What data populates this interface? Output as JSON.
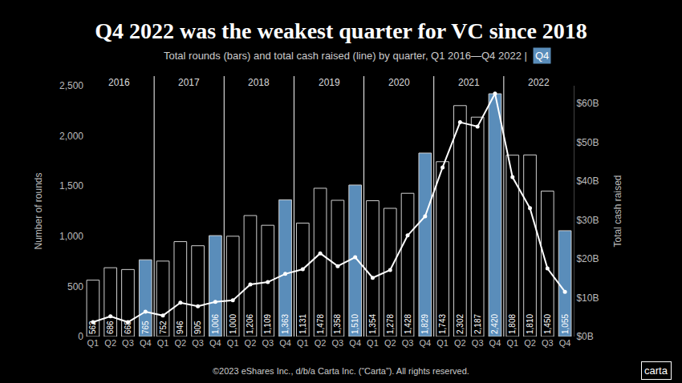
{
  "chart_data": {
    "type": "bar",
    "title": "Q4 2022 was the weakest quarter for VC since 2018",
    "subtitle": "Total rounds (bars) and total cash raised (line) by quarter, Q1 2016—Q4 2022 |",
    "highlight_label": "Q4",
    "ylabel": "Number of rounds",
    "y2label": "Total cash raised",
    "footer": "©2023 eShares Inc., d/b/a Carta Inc. (“Carta”). All rights reserved.",
    "logo": "carta",
    "groups": [
      "2016",
      "2017",
      "2018",
      "2019",
      "2020",
      "2021",
      "2022"
    ],
    "categories": [
      "Q1",
      "Q2",
      "Q3",
      "Q4",
      "Q1",
      "Q2",
      "Q3",
      "Q4",
      "Q1",
      "Q2",
      "Q3",
      "Q4",
      "Q1",
      "Q2",
      "Q3",
      "Q4",
      "Q1",
      "Q2",
      "Q3",
      "Q4",
      "Q1",
      "Q2",
      "Q3",
      "Q4",
      "Q1",
      "Q2",
      "Q3",
      "Q4"
    ],
    "ylim": [
      0,
      2500
    ],
    "yticks": [
      0,
      500,
      {
        "value": 1000,
        "label": "1,000"
      },
      {
        "value": 1500,
        "label": "1,500"
      },
      {
        "value": 2000,
        "label": "2,000"
      },
      {
        "value": 2500,
        "label": "2,500"
      }
    ],
    "y2lim": [
      0,
      64.5
    ],
    "y2ticks": [
      {
        "value": 0,
        "label": "$0B"
      },
      {
        "value": 10,
        "label": "$10B"
      },
      {
        "value": 20,
        "label": "$20B"
      },
      {
        "value": 30,
        "label": "$30B"
      },
      {
        "value": 40,
        "label": "$40B"
      },
      {
        "value": 50,
        "label": "$50B"
      },
      {
        "value": 60,
        "label": "$60B"
      }
    ],
    "grid": false,
    "series": [
      {
        "type": "bar",
        "data_labels": true,
        "values": [
          562,
          686,
          668,
          765,
          752,
          946,
          905,
          1006,
          1000,
          1206,
          1109,
          1363,
          1131,
          1478,
          1358,
          1510,
          1354,
          1278,
          1428,
          1829,
          1743,
          2302,
          2187,
          2420,
          1808,
          1810,
          1450,
          1055
        ],
        "value_labels": [
          "562",
          "686",
          "668",
          "765",
          "752",
          "946",
          "905",
          "1,006",
          "1,000",
          "1,206",
          "1,109",
          "1,363",
          "1,131",
          "1,478",
          "1,358",
          "1,510",
          "1,354",
          "1,278",
          "1,428",
          "1,829",
          "1,743",
          "2,302",
          "2,187",
          "2,420",
          "1,808",
          "1,810",
          "1,450",
          "1,055"
        ],
        "colors": [
          "#000000",
          "#000000",
          "#000000",
          "#5a8dba",
          "#000000",
          "#000000",
          "#000000",
          "#5a8dba",
          "#000000",
          "#000000",
          "#000000",
          "#5a8dba",
          "#000000",
          "#000000",
          "#000000",
          "#5a8dba",
          "#000000",
          "#000000",
          "#000000",
          "#5a8dba",
          "#000000",
          "#000000",
          "#000000",
          "#5a8dba",
          "#000000",
          "#000000",
          "#000000",
          "#5a8dba"
        ]
      },
      {
        "type": "line",
        "axis": "y2",
        "color": "#ffffff",
        "marker": "circle",
        "values": [
          3.7,
          5.2,
          3.7,
          6.4,
          5.4,
          8.7,
          7.8,
          8.9,
          9.3,
          13.4,
          14.0,
          16.1,
          17.3,
          21.4,
          18.1,
          20.4,
          15.1,
          17.1,
          26.0,
          30.9,
          43.5,
          55.1,
          54.0,
          62.5,
          41.0,
          33.0,
          17.5,
          11.5
        ]
      }
    ],
    "highlight_color": "#5a8dba"
  }
}
